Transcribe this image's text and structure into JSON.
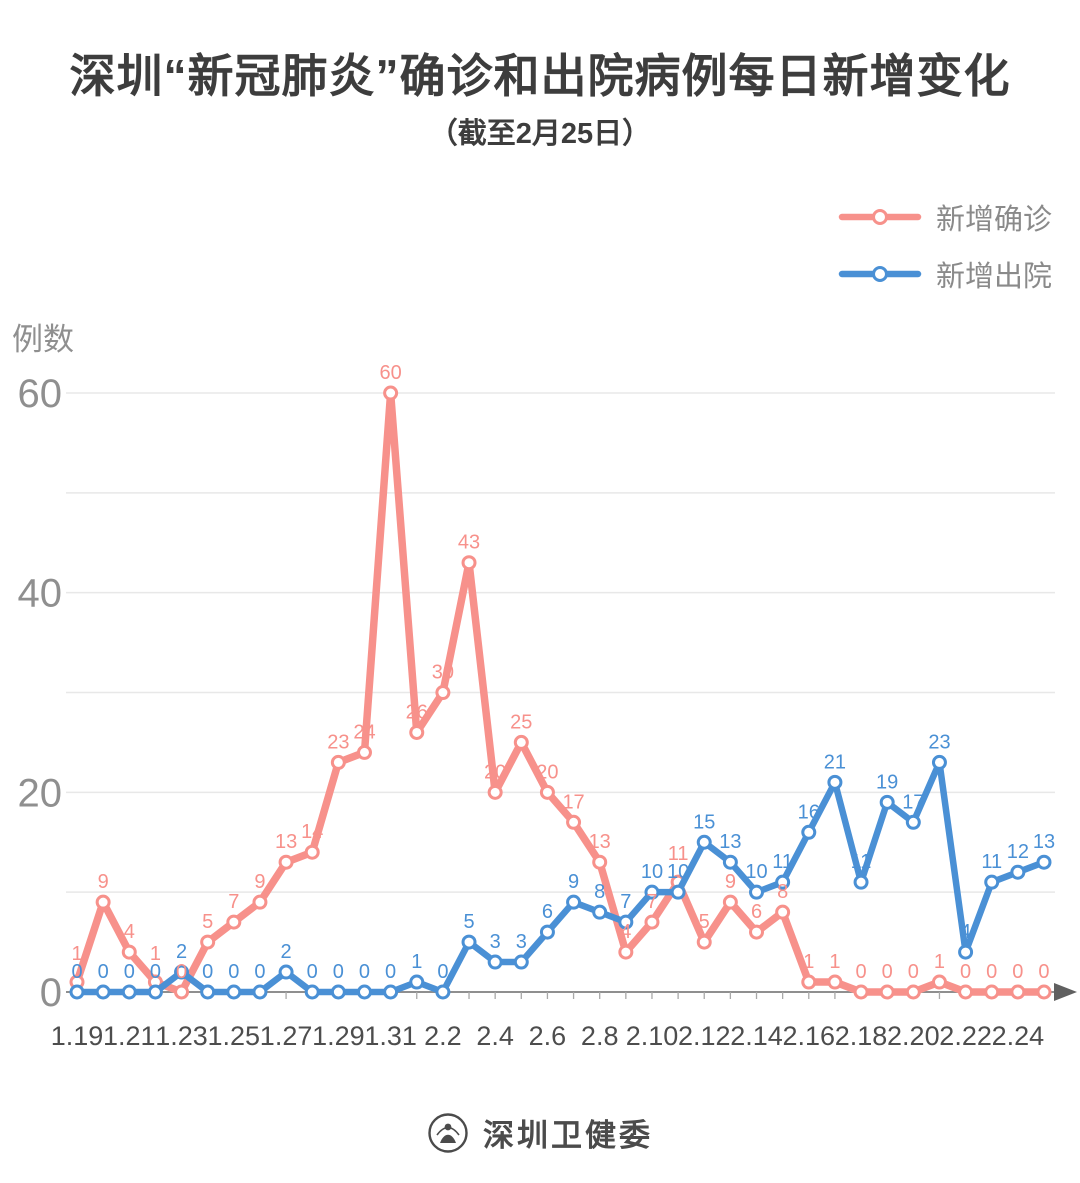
{
  "title": "深圳“新冠肺炎”确诊和出院病例每日新增变化",
  "subtitle": "（截至2月25日）",
  "y_axis_title": "例数",
  "legend": {
    "items": [
      {
        "label": "新增确诊",
        "color": "#F7918B"
      },
      {
        "label": "新增出院",
        "color": "#4A90D5"
      }
    ]
  },
  "footer": {
    "org_name": "深圳卫健委"
  },
  "colors": {
    "confirmed": "#F7918B",
    "discharged": "#4A90D5",
    "title_text": "#3D3D3D",
    "axis_text": "#8F8F8F",
    "x_tick_text": "#4D4D4D",
    "gridline": "#E8E8E8",
    "axis_line": "#8F8F8F",
    "axis_arrow": "#606060",
    "legend_text": "#8A8A8A"
  },
  "chart_data": {
    "type": "line",
    "title": "深圳“新冠肺炎”确诊和出院病例每日新增变化（截至2月25日）",
    "xlabel": "",
    "ylabel": "例数",
    "ylim": [
      0,
      60
    ],
    "yticks_labeled": [
      0,
      20,
      40,
      60
    ],
    "gridlines": [
      10,
      20,
      30,
      40,
      50,
      60
    ],
    "x_tick_label_step": 2,
    "legend_position": "top-right",
    "categories": [
      "1.19",
      "1.20",
      "1.21",
      "1.22",
      "1.23",
      "1.24",
      "1.25",
      "1.26",
      "1.27",
      "1.28",
      "1.29",
      "1.30",
      "1.31",
      "2.1",
      "2.2",
      "2.3",
      "2.4",
      "2.5",
      "2.6",
      "2.7",
      "2.8",
      "2.9",
      "2.10",
      "2.11",
      "2.12",
      "2.13",
      "2.14",
      "2.15",
      "2.16",
      "2.17",
      "2.18",
      "2.19",
      "2.20",
      "2.21",
      "2.22",
      "2.23",
      "2.24",
      "2.25"
    ],
    "series": [
      {
        "name": "新增确诊",
        "color": "#F7918B",
        "values": [
          1,
          9,
          4,
          1,
          0,
          5,
          7,
          9,
          13,
          14,
          23,
          24,
          60,
          26,
          30,
          43,
          20,
          25,
          20,
          17,
          13,
          4,
          7,
          11,
          5,
          9,
          6,
          8,
          1,
          1,
          0,
          0,
          0,
          1,
          0,
          0,
          0,
          0
        ]
      },
      {
        "name": "新增出院",
        "color": "#4A90D5",
        "values": [
          0,
          0,
          0,
          0,
          2,
          0,
          0,
          0,
          2,
          0,
          0,
          0,
          0,
          1,
          0,
          5,
          3,
          3,
          6,
          9,
          8,
          7,
          10,
          10,
          15,
          13,
          10,
          11,
          16,
          21,
          11,
          19,
          17,
          23,
          4,
          11,
          12,
          13
        ]
      }
    ]
  }
}
